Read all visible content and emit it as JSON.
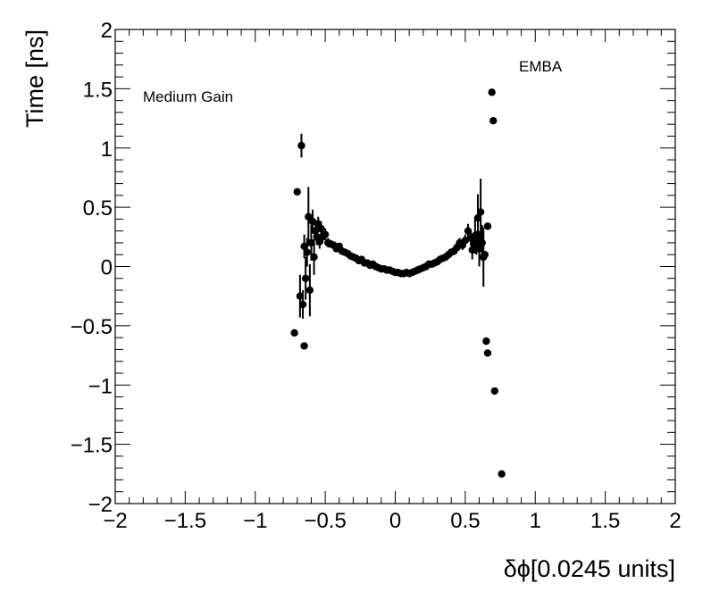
{
  "chart_data": {
    "type": "scatter",
    "xlabel": "δϕ[0.0245 units]",
    "ylabel": "Time [ns]",
    "xlim": [
      -2,
      2
    ],
    "ylim": [
      -2,
      2
    ],
    "x_ticks": [
      -2,
      -1.5,
      -1,
      -0.5,
      0,
      0.5,
      1,
      1.5,
      2
    ],
    "x_tick_labels": [
      "−2",
      "−1.5",
      "−1",
      "−0.5",
      "0",
      "0.5",
      "1",
      "1.5",
      "2"
    ],
    "y_ticks": [
      -2,
      -1.5,
      -1,
      -0.5,
      0,
      0.5,
      1,
      1.5,
      2
    ],
    "y_tick_labels": [
      "−2",
      "−1.5",
      "−1",
      "−0.5",
      "0",
      "0.5",
      "1",
      "1.5",
      "2"
    ],
    "grid": false,
    "annotations": [
      "Medium Gain",
      "EMBA"
    ],
    "series": [
      {
        "marker": "circle",
        "color": "#000000",
        "points": [
          {
            "x": -0.72,
            "y": -0.56,
            "err": 0.0
          },
          {
            "x": -0.7,
            "y": 0.63,
            "err": 0.0
          },
          {
            "x": -0.68,
            "y": -0.25,
            "err": 0.18
          },
          {
            "x": -0.67,
            "y": 1.02,
            "err": 0.1
          },
          {
            "x": -0.66,
            "y": -0.32,
            "err": 0.12
          },
          {
            "x": -0.65,
            "y": 0.17,
            "err": 0.1
          },
          {
            "x": -0.65,
            "y": -0.67,
            "err": 0.0
          },
          {
            "x": -0.64,
            "y": -0.1,
            "err": 0.18
          },
          {
            "x": -0.63,
            "y": 0.12,
            "err": 0.12
          },
          {
            "x": -0.62,
            "y": 0.42,
            "err": 0.25
          },
          {
            "x": -0.61,
            "y": -0.2,
            "err": 0.22
          },
          {
            "x": -0.6,
            "y": 0.2,
            "err": 0.15
          },
          {
            "x": -0.59,
            "y": 0.38,
            "err": 0.1
          },
          {
            "x": -0.58,
            "y": 0.08,
            "err": 0.15
          },
          {
            "x": -0.57,
            "y": 0.3,
            "err": 0.08
          },
          {
            "x": -0.56,
            "y": 0.25,
            "err": 0.07
          },
          {
            "x": -0.55,
            "y": 0.36,
            "err": 0.06
          },
          {
            "x": -0.54,
            "y": 0.21,
            "err": 0.06
          },
          {
            "x": -0.53,
            "y": 0.32,
            "err": 0.06
          },
          {
            "x": -0.52,
            "y": 0.25,
            "err": 0.05
          },
          {
            "x": -0.5,
            "y": 0.27,
            "err": 0.05
          },
          {
            "x": -0.48,
            "y": 0.2,
            "err": 0.04
          },
          {
            "x": -0.46,
            "y": 0.19,
            "err": 0.03
          },
          {
            "x": -0.44,
            "y": 0.18,
            "err": 0.03
          },
          {
            "x": -0.42,
            "y": 0.15,
            "err": 0.03
          },
          {
            "x": -0.4,
            "y": 0.17,
            "err": 0.03
          },
          {
            "x": -0.38,
            "y": 0.13,
            "err": 0.02
          },
          {
            "x": -0.36,
            "y": 0.12,
            "err": 0.02
          },
          {
            "x": -0.34,
            "y": 0.11,
            "err": 0.02
          },
          {
            "x": -0.32,
            "y": 0.09,
            "err": 0.02
          },
          {
            "x": -0.3,
            "y": 0.08,
            "err": 0.02
          },
          {
            "x": -0.28,
            "y": 0.07,
            "err": 0.02
          },
          {
            "x": -0.26,
            "y": 0.05,
            "err": 0.02
          },
          {
            "x": -0.24,
            "y": 0.06,
            "err": 0.02
          },
          {
            "x": -0.22,
            "y": 0.03,
            "err": 0.02
          },
          {
            "x": -0.2,
            "y": 0.03,
            "err": 0.02
          },
          {
            "x": -0.18,
            "y": 0.01,
            "err": 0.02
          },
          {
            "x": -0.16,
            "y": 0.02,
            "err": 0.02
          },
          {
            "x": -0.14,
            "y": 0.0,
            "err": 0.02
          },
          {
            "x": -0.12,
            "y": -0.01,
            "err": 0.02
          },
          {
            "x": -0.1,
            "y": -0.02,
            "err": 0.02
          },
          {
            "x": -0.08,
            "y": -0.02,
            "err": 0.02
          },
          {
            "x": -0.06,
            "y": -0.03,
            "err": 0.02
          },
          {
            "x": -0.04,
            "y": -0.03,
            "err": 0.02
          },
          {
            "x": -0.02,
            "y": -0.04,
            "err": 0.02
          },
          {
            "x": 0.0,
            "y": -0.05,
            "err": 0.02
          },
          {
            "x": 0.02,
            "y": -0.05,
            "err": 0.02
          },
          {
            "x": 0.04,
            "y": -0.06,
            "err": 0.02
          },
          {
            "x": 0.06,
            "y": -0.06,
            "err": 0.02
          },
          {
            "x": 0.08,
            "y": -0.05,
            "err": 0.02
          },
          {
            "x": 0.1,
            "y": -0.06,
            "err": 0.02
          },
          {
            "x": 0.12,
            "y": -0.05,
            "err": 0.02
          },
          {
            "x": 0.14,
            "y": -0.04,
            "err": 0.02
          },
          {
            "x": 0.16,
            "y": -0.03,
            "err": 0.02
          },
          {
            "x": 0.18,
            "y": -0.02,
            "err": 0.02
          },
          {
            "x": 0.2,
            "y": -0.01,
            "err": 0.02
          },
          {
            "x": 0.22,
            "y": 0.0,
            "err": 0.02
          },
          {
            "x": 0.24,
            "y": 0.02,
            "err": 0.02
          },
          {
            "x": 0.26,
            "y": 0.02,
            "err": 0.02
          },
          {
            "x": 0.28,
            "y": 0.03,
            "err": 0.02
          },
          {
            "x": 0.3,
            "y": 0.04,
            "err": 0.02
          },
          {
            "x": 0.32,
            "y": 0.06,
            "err": 0.02
          },
          {
            "x": 0.34,
            "y": 0.07,
            "err": 0.02
          },
          {
            "x": 0.36,
            "y": 0.08,
            "err": 0.02
          },
          {
            "x": 0.38,
            "y": 0.1,
            "err": 0.02
          },
          {
            "x": 0.4,
            "y": 0.12,
            "err": 0.03
          },
          {
            "x": 0.42,
            "y": 0.13,
            "err": 0.03
          },
          {
            "x": 0.44,
            "y": 0.16,
            "err": 0.03
          },
          {
            "x": 0.46,
            "y": 0.2,
            "err": 0.04
          },
          {
            "x": 0.48,
            "y": 0.18,
            "err": 0.04
          },
          {
            "x": 0.5,
            "y": 0.22,
            "err": 0.05
          },
          {
            "x": 0.52,
            "y": 0.3,
            "err": 0.06
          },
          {
            "x": 0.54,
            "y": 0.24,
            "err": 0.06
          },
          {
            "x": 0.55,
            "y": 0.14,
            "err": 0.08
          },
          {
            "x": 0.56,
            "y": 0.19,
            "err": 0.08
          },
          {
            "x": 0.57,
            "y": 0.26,
            "err": 0.15
          },
          {
            "x": 0.58,
            "y": 0.2,
            "err": 0.1
          },
          {
            "x": 0.59,
            "y": 0.41,
            "err": 0.2
          },
          {
            "x": 0.6,
            "y": 0.15,
            "err": 0.15
          },
          {
            "x": 0.61,
            "y": 0.46,
            "err": 0.28
          },
          {
            "x": 0.62,
            "y": 0.2,
            "err": 0.15
          },
          {
            "x": 0.63,
            "y": 0.08,
            "err": 0.25
          },
          {
            "x": 0.64,
            "y": 0.1,
            "err": 0.0
          },
          {
            "x": 0.65,
            "y": -0.63,
            "err": 0.0
          },
          {
            "x": 0.66,
            "y": 0.34,
            "err": 0.0
          },
          {
            "x": 0.66,
            "y": -0.73,
            "err": 0.0
          },
          {
            "x": 0.69,
            "y": 1.47,
            "err": 0.0
          },
          {
            "x": 0.7,
            "y": 1.23,
            "err": 0.0
          },
          {
            "x": 0.71,
            "y": -1.05,
            "err": 0.0
          },
          {
            "x": 0.76,
            "y": -1.75,
            "err": 0.0
          }
        ]
      }
    ]
  }
}
